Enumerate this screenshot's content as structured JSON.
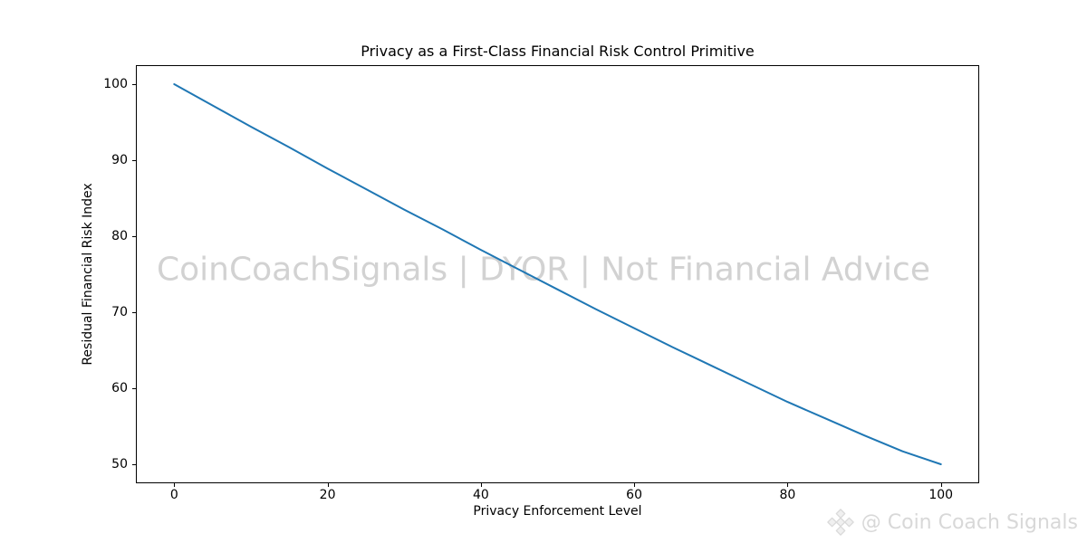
{
  "figure": {
    "background": "#ffffff"
  },
  "watermark": {
    "text": "CoinCoachSignals | DYOR | Not Financial Advice",
    "color": "#d2d2d2"
  },
  "credit": {
    "text": "@ Coin Coach Signals",
    "color": "#d8d8d8",
    "icon": "diamond-logo-icon"
  },
  "chart_data": {
    "type": "line",
    "title": "Privacy as a First-Class Financial Risk Control Primitive",
    "xlabel": "Privacy Enforcement Level",
    "ylabel": "Residual Financial Risk Index",
    "x_ticks": [
      0,
      20,
      40,
      60,
      80,
      100
    ],
    "y_ticks": [
      50,
      60,
      70,
      80,
      90,
      100
    ],
    "xlim": [
      -5,
      105
    ],
    "ylim": [
      47.5,
      102.5
    ],
    "grid": false,
    "legend_position": "none",
    "line_color": "#1f77b4",
    "axis_color": "#000000",
    "series": [
      {
        "name": "Residual Financial Risk Index",
        "x": [
          0,
          5,
          10,
          15,
          20,
          25,
          30,
          35,
          40,
          45,
          50,
          55,
          60,
          65,
          70,
          75,
          80,
          85,
          90,
          95,
          100
        ],
        "y": [
          100,
          97.2,
          94.4,
          91.7,
          88.9,
          86.2,
          83.5,
          80.9,
          78.2,
          75.6,
          73.0,
          70.4,
          67.9,
          65.4,
          63.0,
          60.6,
          58.2,
          56.0,
          53.8,
          51.7,
          50.0
        ]
      }
    ]
  }
}
